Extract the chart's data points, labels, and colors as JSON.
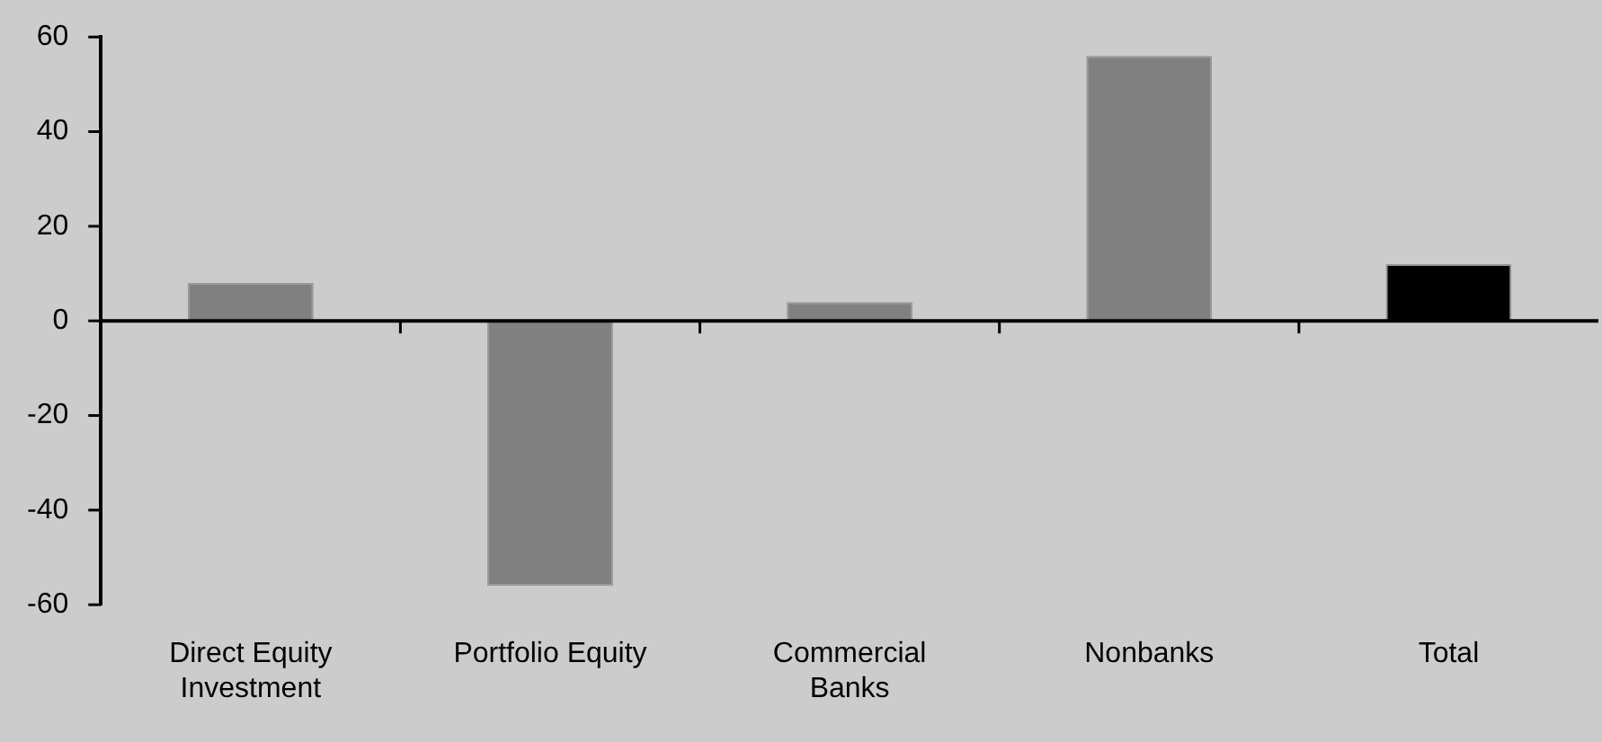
{
  "chart_data": {
    "type": "bar",
    "categories": [
      "Direct Equity Investment",
      "Portfolio Equity",
      "Commercial Banks",
      "Nonbanks",
      "Total"
    ],
    "values": [
      8,
      -56,
      4,
      56,
      12
    ],
    "colors": [
      "#808080",
      "#808080",
      "#808080",
      "#808080",
      "#000000"
    ],
    "ylim": [
      -60,
      60
    ],
    "yticks": [
      -60,
      -40,
      -20,
      0,
      20,
      40,
      60
    ],
    "legend": false
  }
}
